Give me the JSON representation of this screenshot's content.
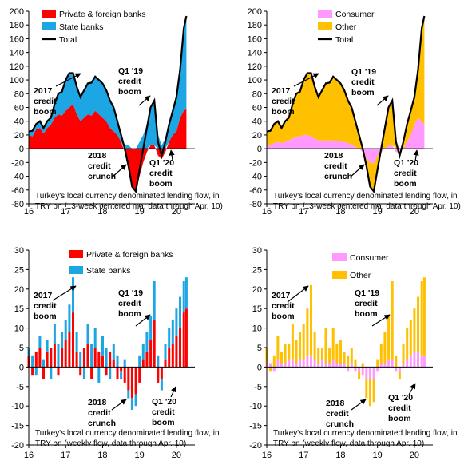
{
  "colors": {
    "private": "#ff0000",
    "state": "#1ca6e4",
    "consumer": "#ff99ff",
    "other": "#ffc000",
    "total": "#000000"
  },
  "chart_data": [
    {
      "type": "area",
      "stacking": "signed",
      "caption": [
        "Turkey's local currency denominated lending flow, in",
        "TRY bn (13-week centered ma, data through Apr. 10)"
      ],
      "ylim": [
        -80,
        200
      ],
      "yticks": [
        -80,
        -60,
        -40,
        -20,
        0,
        20,
        40,
        60,
        80,
        100,
        120,
        140,
        160,
        180,
        200
      ],
      "xlim": [
        2016,
        2020.5
      ],
      "xticks": [
        {
          "value": 2016,
          "label": "16"
        },
        {
          "value": 2017,
          "label": "17"
        },
        {
          "value": 2018,
          "label": "18"
        },
        {
          "value": 2019,
          "label": "19"
        },
        {
          "value": 2020,
          "label": "20"
        }
      ],
      "x": [
        2016.0,
        2016.1,
        2016.2,
        2016.3,
        2016.4,
        2016.5,
        2016.6,
        2016.7,
        2016.8,
        2016.9,
        2017.0,
        2017.1,
        2017.2,
        2017.3,
        2017.4,
        2017.5,
        2017.6,
        2017.7,
        2017.8,
        2017.9,
        2018.0,
        2018.1,
        2018.2,
        2018.3,
        2018.4,
        2018.5,
        2018.6,
        2018.7,
        2018.8,
        2018.9,
        2019.0,
        2019.1,
        2019.2,
        2019.3,
        2019.4,
        2019.5,
        2019.6,
        2019.7,
        2019.8,
        2019.9,
        2020.0,
        2020.1,
        2020.2,
        2020.27
      ],
      "series": [
        {
          "name": "Private & foreign banks",
          "color_key": "private",
          "values": [
            20,
            18,
            28,
            30,
            22,
            30,
            35,
            45,
            50,
            48,
            55,
            60,
            65,
            50,
            40,
            45,
            50,
            48,
            55,
            50,
            45,
            40,
            30,
            25,
            20,
            10,
            -5,
            -30,
            -55,
            -62,
            -40,
            -20,
            -5,
            5,
            5,
            -10,
            -15,
            -5,
            10,
            20,
            25,
            45,
            55,
            58
          ]
        },
        {
          "name": "State banks",
          "color_key": "state",
          "values": [
            5,
            8,
            8,
            10,
            8,
            10,
            10,
            20,
            30,
            35,
            45,
            50,
            45,
            40,
            35,
            40,
            45,
            48,
            50,
            50,
            50,
            45,
            40,
            35,
            20,
            10,
            5,
            5,
            0,
            0,
            10,
            20,
            35,
            55,
            65,
            20,
            5,
            15,
            25,
            35,
            50,
            70,
            120,
            135
          ]
        },
        {
          "name": "Total",
          "color_key": "total",
          "line": true,
          "values": [
            25,
            26,
            36,
            40,
            30,
            40,
            45,
            65,
            80,
            83,
            100,
            110,
            110,
            90,
            75,
            85,
            95,
            96,
            105,
            100,
            95,
            85,
            70,
            60,
            40,
            20,
            0,
            -25,
            -55,
            -62,
            -30,
            0,
            30,
            60,
            70,
            10,
            -10,
            10,
            35,
            55,
            75,
            115,
            175,
            193
          ]
        }
      ],
      "annotations": [
        {
          "lines": [
            "2017",
            "credit",
            "boom"
          ]
        },
        {
          "lines": [
            "Q1 '19",
            "credit",
            "boom"
          ]
        },
        {
          "lines": [
            "2018",
            "credit",
            "crunch"
          ]
        },
        {
          "lines": [
            "Q1 '20",
            "credit",
            "boom"
          ]
        }
      ]
    },
    {
      "type": "area",
      "stacking": "signed",
      "caption": [
        "Turkey's local currency denominated lending flow, in",
        "TRY bn (13-week centered ma, data through Apr. 10)"
      ],
      "ylim": [
        -80,
        200
      ],
      "yticks": [
        -80,
        -60,
        -40,
        -20,
        0,
        20,
        40,
        60,
        80,
        100,
        120,
        140,
        160,
        180,
        200
      ],
      "xlim": [
        2016,
        2020.5
      ],
      "xticks": [
        {
          "value": 2016,
          "label": "16"
        },
        {
          "value": 2017,
          "label": "17"
        },
        {
          "value": 2018,
          "label": "18"
        },
        {
          "value": 2019,
          "label": "19"
        },
        {
          "value": 2020,
          "label": "20"
        }
      ],
      "x": [
        2016.0,
        2016.1,
        2016.2,
        2016.3,
        2016.4,
        2016.5,
        2016.6,
        2016.7,
        2016.8,
        2016.9,
        2017.0,
        2017.1,
        2017.2,
        2017.3,
        2017.4,
        2017.5,
        2017.6,
        2017.7,
        2017.8,
        2017.9,
        2018.0,
        2018.1,
        2018.2,
        2018.3,
        2018.4,
        2018.5,
        2018.6,
        2018.7,
        2018.8,
        2018.9,
        2019.0,
        2019.1,
        2019.2,
        2019.3,
        2019.4,
        2019.5,
        2019.6,
        2019.7,
        2019.8,
        2019.9,
        2020.0,
        2020.1,
        2020.2,
        2020.27
      ],
      "series": [
        {
          "name": "Consumer",
          "color_key": "consumer",
          "values": [
            5,
            6,
            8,
            10,
            8,
            10,
            12,
            15,
            18,
            18,
            20,
            20,
            18,
            15,
            12,
            12,
            12,
            12,
            12,
            11,
            10,
            10,
            8,
            6,
            3,
            0,
            -5,
            -15,
            -20,
            -22,
            -10,
            -5,
            0,
            5,
            5,
            -5,
            -5,
            0,
            10,
            20,
            35,
            45,
            40,
            35
          ]
        },
        {
          "name": "Other",
          "color_key": "other",
          "values": [
            20,
            20,
            28,
            30,
            22,
            30,
            33,
            50,
            62,
            65,
            80,
            90,
            92,
            75,
            63,
            73,
            83,
            84,
            93,
            89,
            85,
            75,
            62,
            54,
            37,
            20,
            5,
            -10,
            -35,
            -40,
            -20,
            5,
            30,
            55,
            65,
            15,
            -5,
            10,
            25,
            35,
            40,
            70,
            135,
            158
          ]
        },
        {
          "name": "Total",
          "color_key": "total",
          "line": true,
          "values": [
            25,
            26,
            36,
            40,
            30,
            40,
            45,
            65,
            80,
            83,
            100,
            110,
            110,
            90,
            75,
            85,
            95,
            96,
            105,
            100,
            95,
            85,
            70,
            60,
            40,
            20,
            0,
            -25,
            -55,
            -62,
            -30,
            0,
            30,
            60,
            70,
            10,
            -10,
            10,
            35,
            55,
            75,
            115,
            175,
            193
          ]
        }
      ],
      "annotations": [
        {
          "lines": [
            "2017",
            "credit",
            "boom"
          ]
        },
        {
          "lines": [
            "Q1 '19",
            "credit",
            "boom"
          ]
        },
        {
          "lines": [
            "2018",
            "credit",
            "crunch"
          ]
        },
        {
          "lines": [
            "Q1 '20",
            "credit",
            "boom"
          ]
        }
      ]
    },
    {
      "type": "bar",
      "stacking": "signed",
      "caption": [
        "Turkey's local currency denominated lending flow, in",
        "TRY bn (weekly flow, data through Apr. 10)"
      ],
      "ylim": [
        -20,
        30
      ],
      "yticks": [
        -20,
        -15,
        -10,
        -5,
        0,
        5,
        10,
        15,
        20,
        25,
        30
      ],
      "xlim": [
        2016,
        2020.5
      ],
      "xticks": [
        {
          "value": 2016,
          "label": "16"
        },
        {
          "value": 2017,
          "label": "17"
        },
        {
          "value": 2018,
          "label": "18"
        },
        {
          "value": 2019,
          "label": "19"
        },
        {
          "value": 2020,
          "label": "20"
        }
      ],
      "x": [
        2016.0,
        2016.1,
        2016.2,
        2016.3,
        2016.4,
        2016.5,
        2016.6,
        2016.7,
        2016.8,
        2016.9,
        2017.0,
        2017.1,
        2017.2,
        2017.3,
        2017.4,
        2017.5,
        2017.6,
        2017.7,
        2017.8,
        2017.9,
        2018.0,
        2018.1,
        2018.2,
        2018.3,
        2018.4,
        2018.5,
        2018.6,
        2018.7,
        2018.8,
        2018.9,
        2019.0,
        2019.1,
        2019.2,
        2019.3,
        2019.4,
        2019.5,
        2019.6,
        2019.7,
        2019.8,
        2019.9,
        2020.0,
        2020.1,
        2020.2,
        2020.27
      ],
      "series": [
        {
          "name": "Private & foreign banks",
          "color_key": "private",
          "values": [
            3,
            -2,
            4,
            5,
            -3,
            4,
            5,
            6,
            -2,
            5,
            7,
            9,
            14,
            4,
            -2,
            5,
            6,
            -3,
            5,
            4,
            3,
            -2,
            4,
            2,
            -3,
            -1,
            -4,
            -6,
            -8,
            -7,
            -4,
            2,
            4,
            7,
            12,
            -4,
            -3,
            2,
            5,
            6,
            8,
            10,
            14,
            15
          ]
        },
        {
          "name": "State banks",
          "color_key": "state",
          "values": [
            2,
            3,
            -2,
            3,
            2,
            3,
            -3,
            5,
            6,
            4,
            5,
            7,
            9,
            5,
            4,
            -3,
            5,
            6,
            5,
            -4,
            5,
            5,
            -3,
            4,
            3,
            -2,
            2,
            -2,
            -3,
            -3,
            3,
            4,
            5,
            6,
            10,
            3,
            -3,
            4,
            5,
            6,
            7,
            8,
            8,
            8
          ]
        }
      ],
      "annotations": [
        {
          "lines": [
            "2017",
            "credit",
            "boom"
          ]
        },
        {
          "lines": [
            "Q1 '19",
            "credit",
            "boom"
          ]
        },
        {
          "lines": [
            "2018",
            "credit",
            "crunch"
          ]
        },
        {
          "lines": [
            "Q1 '20",
            "credit",
            "boom"
          ]
        }
      ]
    },
    {
      "type": "bar",
      "stacking": "signed",
      "caption": [
        "Turkey's local currency denominated lending flow, in",
        "TRY bn (weekly flow, data through Apr. 10)"
      ],
      "ylim": [
        -20,
        30
      ],
      "yticks": [
        -20,
        -15,
        -10,
        -5,
        0,
        5,
        10,
        15,
        20,
        25,
        30
      ],
      "xlim": [
        2016,
        2020.5
      ],
      "xticks": [
        {
          "value": 2016,
          "label": "16"
        },
        {
          "value": 2017,
          "label": "17"
        },
        {
          "value": 2018,
          "label": "18"
        },
        {
          "value": 2019,
          "label": "19"
        },
        {
          "value": 2020,
          "label": "20"
        }
      ],
      "x": [
        2016.0,
        2016.1,
        2016.2,
        2016.3,
        2016.4,
        2016.5,
        2016.6,
        2016.7,
        2016.8,
        2016.9,
        2017.0,
        2017.1,
        2017.2,
        2017.3,
        2017.4,
        2017.5,
        2017.6,
        2017.7,
        2017.8,
        2017.9,
        2018.0,
        2018.1,
        2018.2,
        2018.3,
        2018.4,
        2018.5,
        2018.6,
        2018.7,
        2018.8,
        2018.9,
        2019.0,
        2019.1,
        2019.2,
        2019.3,
        2019.4,
        2019.5,
        2019.6,
        2019.7,
        2019.8,
        2019.9,
        2020.0,
        2020.1,
        2020.2,
        2020.27
      ],
      "series": [
        {
          "name": "Consumer",
          "color_key": "consumer",
          "values": [
            1,
            1,
            -1,
            2,
            1,
            1,
            2,
            2,
            1,
            2,
            2,
            3,
            3,
            2,
            1,
            2,
            1,
            1,
            2,
            1,
            1,
            1,
            -1,
            1,
            -1,
            -1,
            -2,
            -3,
            -3,
            -3,
            -1,
            1,
            1,
            2,
            2,
            -1,
            -1,
            1,
            2,
            3,
            4,
            4,
            3,
            3
          ]
        },
        {
          "name": "Other",
          "color_key": "other",
          "values": [
            4,
            -1,
            3,
            6,
            3,
            5,
            4,
            9,
            6,
            7,
            9,
            12,
            18,
            7,
            4,
            3,
            9,
            4,
            8,
            5,
            6,
            3,
            3,
            4,
            2,
            -2,
            1,
            -5,
            -7,
            -6,
            2,
            5,
            8,
            11,
            20,
            3,
            -2,
            5,
            8,
            9,
            11,
            14,
            19,
            20
          ]
        }
      ],
      "annotations": [
        {
          "lines": [
            "2017",
            "credit",
            "boom"
          ]
        },
        {
          "lines": [
            "Q1 '19",
            "credit",
            "boom"
          ]
        },
        {
          "lines": [
            "2018",
            "credit",
            "crunch"
          ]
        },
        {
          "lines": [
            "Q1 '20",
            "credit",
            "boom"
          ]
        }
      ]
    }
  ]
}
